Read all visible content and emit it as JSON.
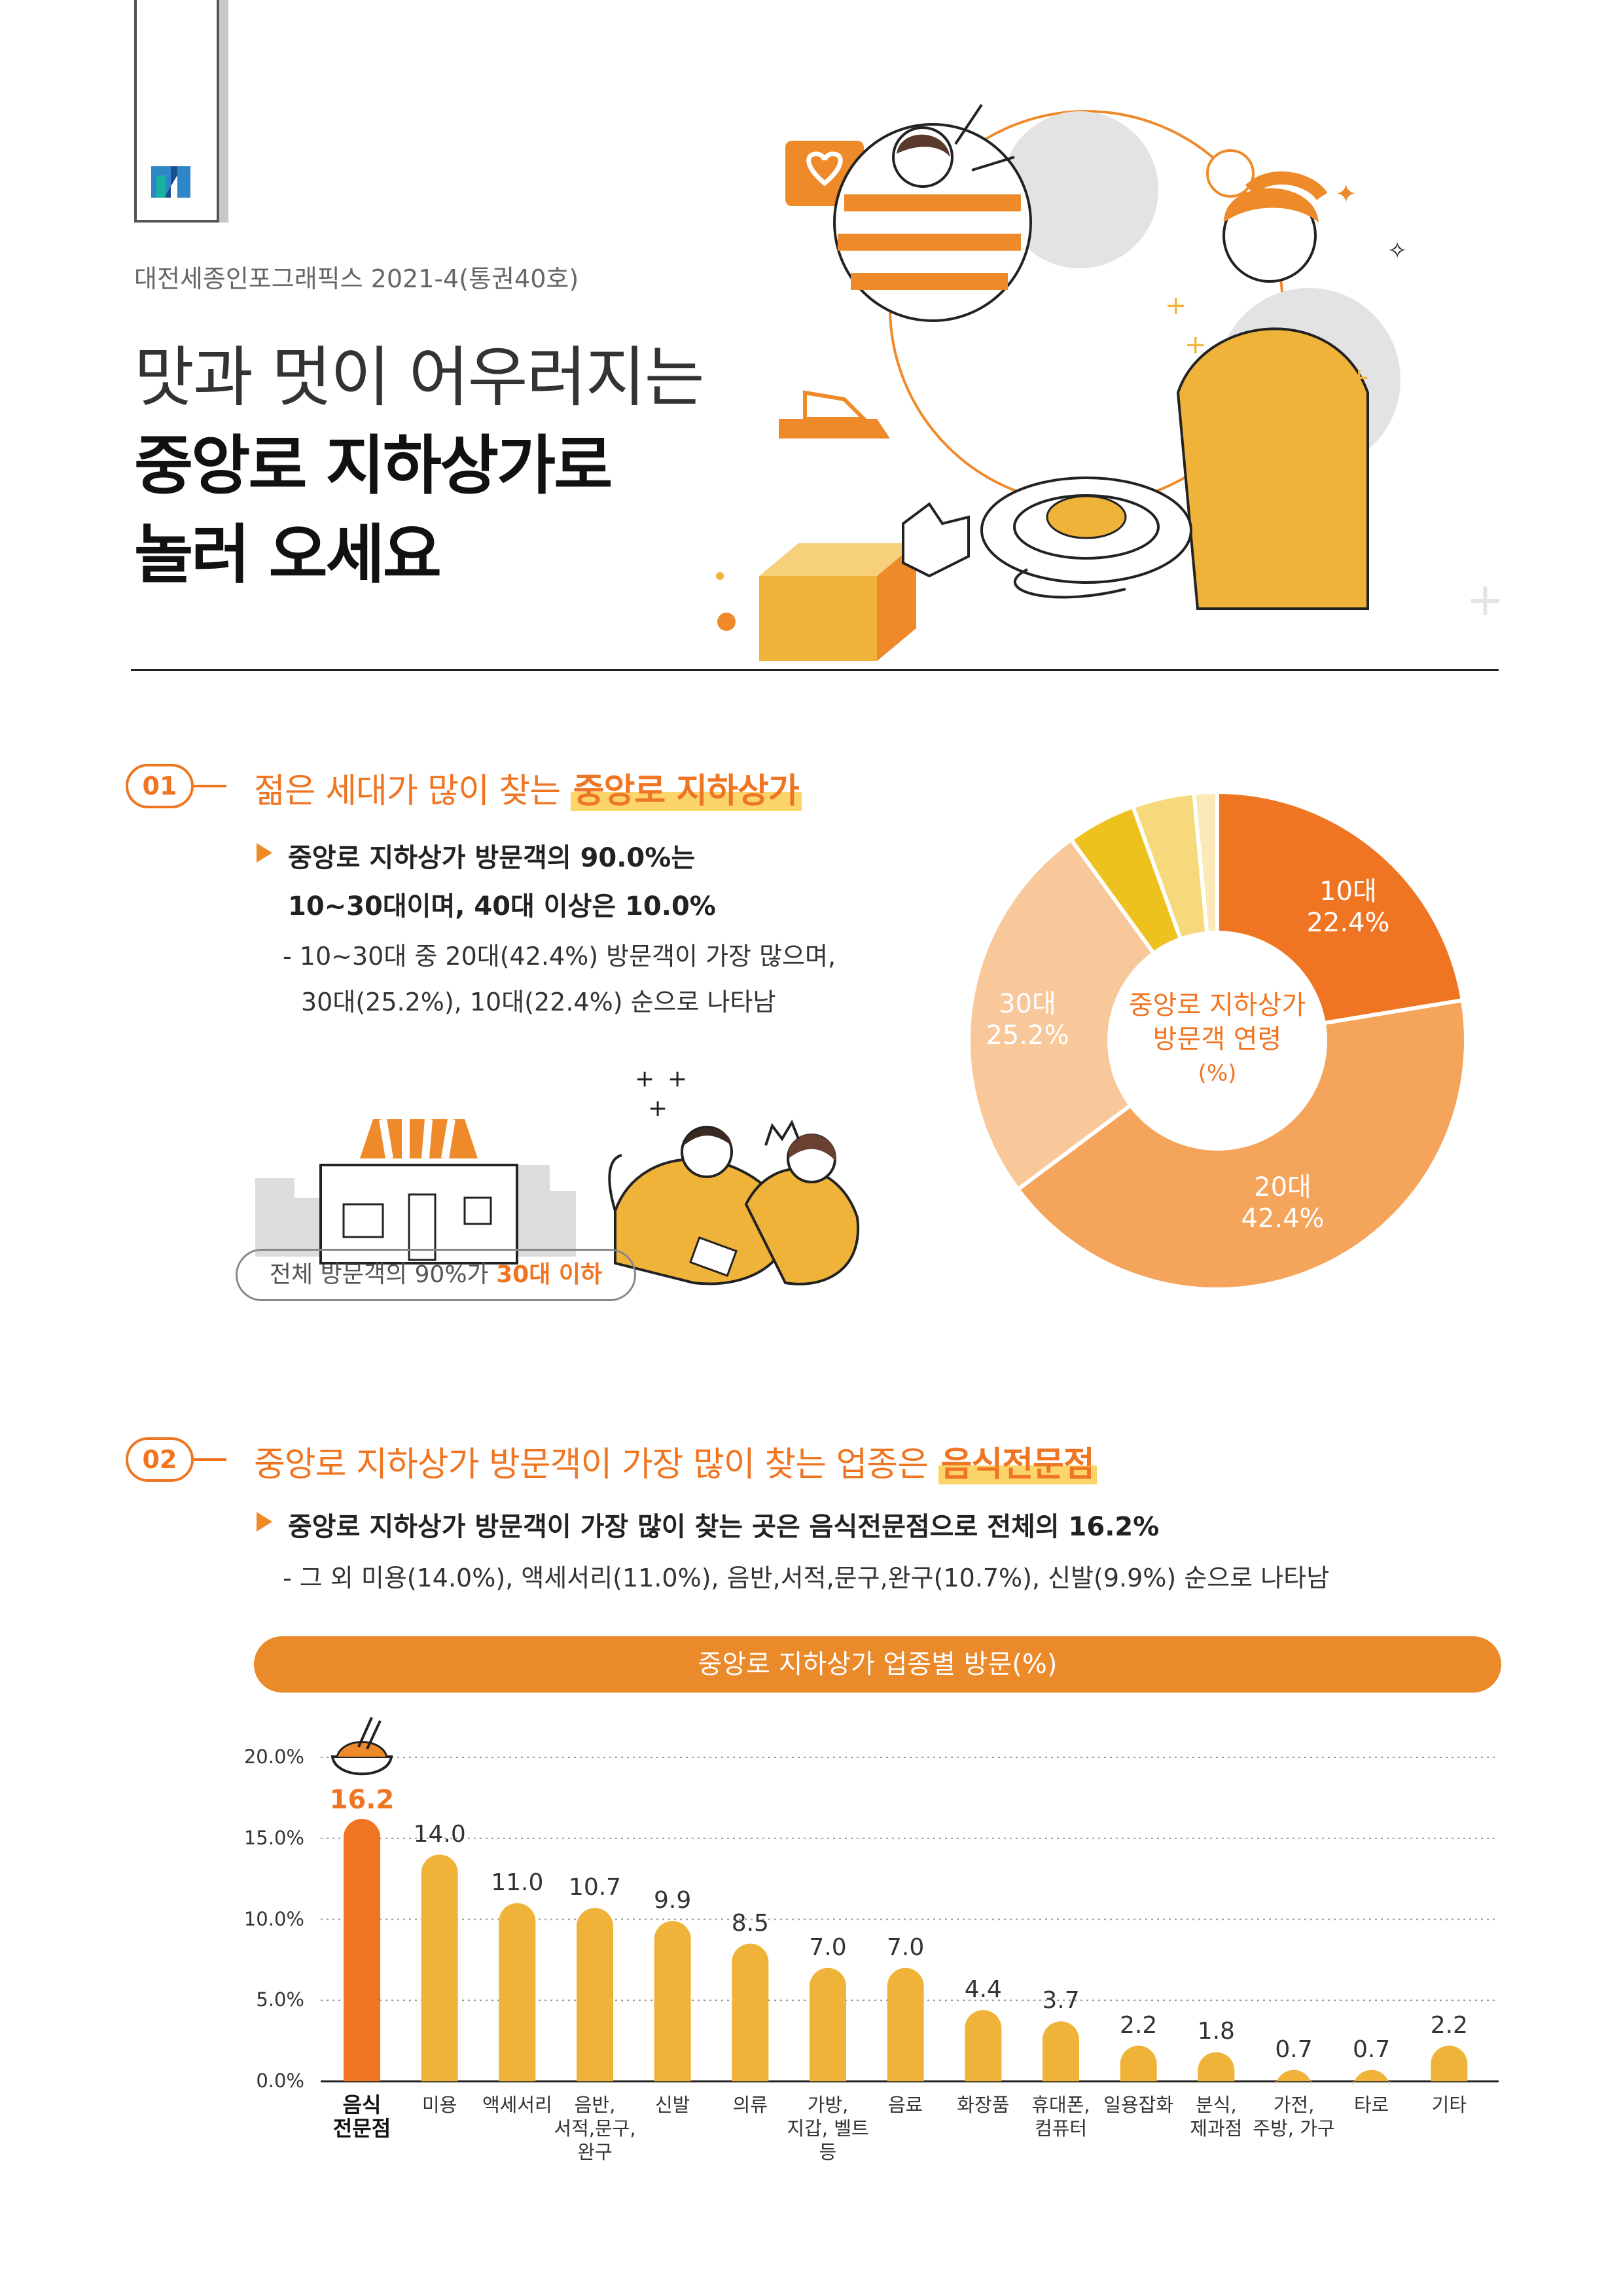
{
  "header": {
    "publisher": "대전세종인포그래픽스 2021-4(통권40호)",
    "title_line1": "맛과 멋이 어우러지는",
    "title_line2": "중앙로 지하상가로",
    "title_line3": "놀러 오세요"
  },
  "colors": {
    "accent": "#f07522",
    "highlight": "#fbd56a",
    "bar": "#f0b33a",
    "bar_top": "#f07522",
    "title_bar": "#ea8a2a"
  },
  "section1": {
    "number": "01",
    "heading_prefix": "젊은 세대가 많이 찾는 ",
    "heading_highlight": "중앙로 지하상가",
    "bullet_line1": "중앙로 지하상가 방문객의 90.0%는",
    "bullet_line2": "10~30대이며, 40대 이상은 10.0%",
    "note_line1": "- 10~30대 중 20대(42.4%) 방문객이 가장 많으며,",
    "note_line2": "30대(25.2%), 10대(22.4%) 순으로 나타남",
    "pill_prefix": "전체 방문객의 90%가 ",
    "pill_highlight": "30대 이하",
    "donut_center": [
      "중앙로 지하상가",
      "방문객 연령",
      "(%)"
    ],
    "donut_labels": {
      "teens": [
        "10대",
        "22.4%"
      ],
      "twenties": [
        "20대",
        "42.4%"
      ],
      "thirties": [
        "30대",
        "25.2%"
      ]
    }
  },
  "section2": {
    "number": "02",
    "heading_prefix": "중앙로 지하상가 방문객이 가장 많이 찾는 업종은 ",
    "heading_highlight": "음식전문점",
    "bullet_line1": "중앙로 지하상가 방문객이 가장 많이 찾는 곳은 음식전문점으로 전체의 16.2%",
    "note_line1": "- 그 외 미용(14.0%), 액세서리(11.0%), 음반,서적,문구,완구(10.7%), 신발(9.9%) 순으로 나타남",
    "chart_title": "중앙로 지하상가 업종별 방문(%)"
  },
  "chart_data": [
    {
      "type": "pie",
      "title": "중앙로 지하상가 방문객 연령 (%)",
      "slices": [
        {
          "name": "10대",
          "value": 22.4,
          "color": "#f07522"
        },
        {
          "name": "20대",
          "value": 42.4,
          "color": "#f4a45b"
        },
        {
          "name": "30대",
          "value": 25.2,
          "color": "#f8c89a"
        },
        {
          "name": "",
          "value": 4.5,
          "color": "#eec21e"
        },
        {
          "name": "",
          "value": 4.0,
          "color": "#f6d97a"
        },
        {
          "name": "",
          "value": 1.5,
          "color": "#fbeab8"
        }
      ]
    },
    {
      "type": "bar",
      "title": "중앙로 지하상가 업종별 방문(%)",
      "categories": [
        "음식\n전문점",
        "미용",
        "액세서리",
        "음반,\n서적,문구,\n완구",
        "신발",
        "의류",
        "가방,\n지갑, 벨트\n등",
        "음료",
        "화장품",
        "휴대폰,\n컴퓨터",
        "일용잡화",
        "분식,\n제과점",
        "가전,\n주방, 가구",
        "타로",
        "기타"
      ],
      "values": [
        16.2,
        14.0,
        11.0,
        10.7,
        9.9,
        8.5,
        7.0,
        7.0,
        4.4,
        3.7,
        2.2,
        1.8,
        0.7,
        0.7,
        2.2
      ],
      "value_labels": [
        "16.2",
        "14.0",
        "11.0",
        "10.7",
        "9.9",
        "8.5",
        "7.0",
        "7.0",
        "4.4",
        "3.7",
        "2.2",
        "1.8",
        "0.7",
        "0.7",
        "2.2"
      ],
      "yticks": [
        "0.0%",
        "5.0%",
        "10.0%",
        "15.0%",
        "20.0%"
      ],
      "ylim": [
        0,
        20
      ],
      "grid": true
    }
  ]
}
